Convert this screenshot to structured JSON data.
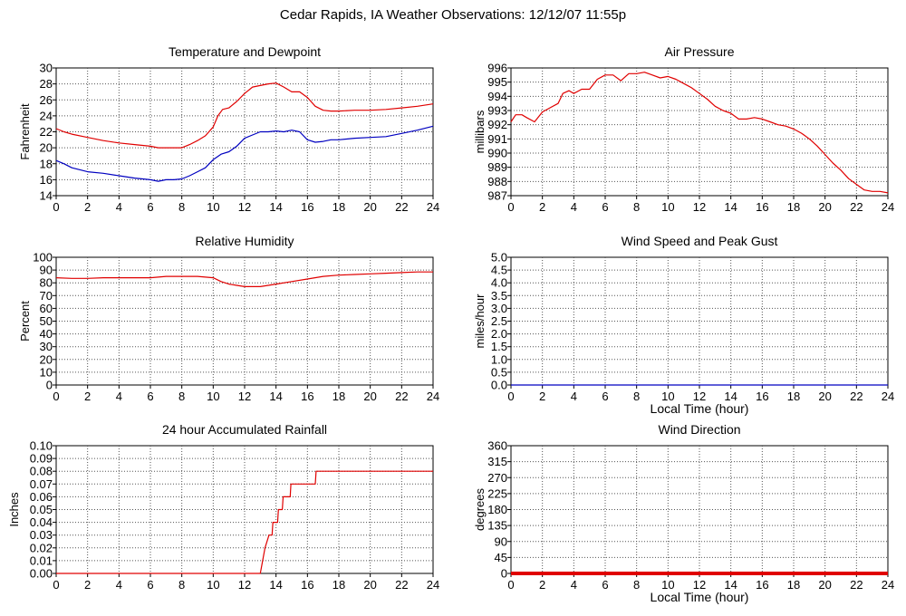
{
  "page_title": "Cedar Rapids, IA Weather Observations: 12/12/07 11:55p",
  "colors": {
    "red": "#e00000",
    "blue": "#0000c0",
    "grid": "#555555",
    "background": "#ffffff"
  },
  "chart_data": [
    {
      "type": "line",
      "title": "Temperature and Dewpoint",
      "xlabel": "",
      "ylabel": "Fahrenheit",
      "xlim": [
        0,
        24
      ],
      "ylim": [
        14,
        30
      ],
      "xticks": [
        0,
        2,
        4,
        6,
        8,
        10,
        12,
        14,
        16,
        18,
        20,
        22,
        24
      ],
      "yticks": [
        14,
        16,
        18,
        20,
        22,
        24,
        26,
        28,
        30
      ],
      "grid": true,
      "series": [
        {
          "color": "#e00000",
          "x": [
            0,
            0.5,
            1,
            2,
            3,
            4,
            5,
            6,
            6.5,
            7,
            7.5,
            8,
            8.5,
            9,
            9.5,
            10,
            10.3,
            10.6,
            11,
            11.5,
            12,
            12.5,
            13,
            13.5,
            14,
            14.5,
            15,
            15.5,
            16,
            16.5,
            17,
            17.5,
            18,
            19,
            20,
            21,
            22,
            23,
            24
          ],
          "y": [
            22.4,
            22.0,
            21.7,
            21.3,
            20.9,
            20.6,
            20.4,
            20.2,
            20.0,
            20.0,
            20.0,
            20.0,
            20.4,
            20.9,
            21.5,
            22.6,
            24.0,
            24.8,
            25.0,
            25.8,
            26.8,
            27.6,
            27.8,
            28.0,
            28.1,
            27.6,
            27.0,
            27.0,
            26.3,
            25.2,
            24.7,
            24.6,
            24.6,
            24.7,
            24.7,
            24.8,
            25.0,
            25.2,
            25.5
          ]
        },
        {
          "color": "#0000c0",
          "x": [
            0,
            0.5,
            1,
            2,
            3,
            4,
            5,
            6,
            6.5,
            7,
            7.5,
            8,
            8.5,
            9,
            9.5,
            10,
            10.5,
            11,
            11.5,
            12,
            12.5,
            13,
            13.5,
            14,
            14.5,
            15,
            15.5,
            16,
            16.5,
            17,
            17.5,
            18,
            19,
            20,
            21,
            22,
            23,
            24
          ],
          "y": [
            18.4,
            18.0,
            17.5,
            17.0,
            16.8,
            16.5,
            16.2,
            16.0,
            15.8,
            16.0,
            16.0,
            16.1,
            16.5,
            17.0,
            17.5,
            18.5,
            19.2,
            19.5,
            20.2,
            21.2,
            21.6,
            22.0,
            22.0,
            22.1,
            22.0,
            22.2,
            22.0,
            21.0,
            20.7,
            20.8,
            21.0,
            21.0,
            21.2,
            21.3,
            21.4,
            21.8,
            22.2,
            22.7
          ]
        }
      ]
    },
    {
      "type": "line",
      "title": "Air Pressure",
      "xlabel": "",
      "ylabel": "millibars",
      "xlim": [
        0,
        24
      ],
      "ylim": [
        987,
        996
      ],
      "xticks": [
        0,
        2,
        4,
        6,
        8,
        10,
        12,
        14,
        16,
        18,
        20,
        22,
        24
      ],
      "yticks": [
        987,
        988,
        989,
        990,
        991,
        992,
        993,
        994,
        995,
        996
      ],
      "grid": true,
      "series": [
        {
          "color": "#e00000",
          "x": [
            0,
            0.3,
            0.7,
            1,
            1.5,
            2,
            2.5,
            3,
            3.3,
            3.7,
            4,
            4.5,
            5,
            5.5,
            6,
            6.5,
            7,
            7.5,
            8,
            8.5,
            9,
            9.5,
            10,
            10.5,
            11,
            11.5,
            12,
            12.5,
            13,
            13.5,
            14,
            14.5,
            15,
            15.5,
            16,
            16.5,
            17,
            17.5,
            18,
            18.5,
            19,
            19.5,
            20,
            20.5,
            21,
            21.5,
            22,
            22.5,
            23,
            23.5,
            24
          ],
          "y": [
            992.2,
            992.7,
            992.7,
            992.5,
            992.2,
            992.9,
            993.2,
            993.5,
            994.2,
            994.4,
            994.2,
            994.5,
            994.5,
            995.2,
            995.5,
            995.5,
            995.1,
            995.6,
            995.6,
            995.7,
            995.5,
            995.3,
            995.4,
            995.2,
            994.9,
            994.6,
            994.2,
            993.8,
            993.3,
            993.0,
            992.8,
            992.4,
            992.4,
            992.5,
            992.4,
            992.2,
            992.0,
            991.9,
            991.7,
            991.4,
            991.0,
            990.5,
            989.9,
            989.3,
            988.8,
            988.2,
            987.8,
            987.4,
            987.3,
            987.3,
            987.2
          ]
        }
      ]
    },
    {
      "type": "line",
      "title": "Relative Humidity",
      "xlabel": "",
      "ylabel": "Percent",
      "xlim": [
        0,
        24
      ],
      "ylim": [
        0,
        100
      ],
      "xticks": [
        0,
        2,
        4,
        6,
        8,
        10,
        12,
        14,
        16,
        18,
        20,
        22,
        24
      ],
      "yticks": [
        0,
        10,
        20,
        30,
        40,
        50,
        60,
        70,
        80,
        90,
        100
      ],
      "grid": true,
      "series": [
        {
          "color": "#e00000",
          "x": [
            0,
            1,
            2,
            3,
            4,
            5,
            6,
            7,
            8,
            9,
            10,
            10.5,
            11,
            11.5,
            12,
            12.5,
            13,
            13.5,
            14,
            15,
            16,
            17,
            18,
            19,
            20,
            21,
            22,
            23,
            24
          ],
          "y": [
            84,
            83.5,
            83.5,
            84,
            84,
            84,
            84,
            85,
            85,
            85,
            84,
            81,
            79,
            78,
            77,
            77,
            77,
            78,
            79,
            81,
            83,
            85,
            86,
            86.5,
            87,
            87.5,
            88,
            88.5,
            88.5
          ]
        }
      ]
    },
    {
      "type": "line",
      "title": "Wind Speed and Peak Gust",
      "xlabel": "Local Time (hour)",
      "ylabel": "miles/hour",
      "xlim": [
        0,
        24
      ],
      "ylim": [
        0,
        5
      ],
      "xticks": [
        0,
        2,
        4,
        6,
        8,
        10,
        12,
        14,
        16,
        18,
        20,
        22,
        24
      ],
      "yticks": [
        0.0,
        0.5,
        1.0,
        1.5,
        2.0,
        2.5,
        3.0,
        3.5,
        4.0,
        4.5,
        5.0
      ],
      "grid": true,
      "series": [
        {
          "color": "#0000c0",
          "x": [
            0,
            24
          ],
          "y": [
            0,
            0
          ]
        }
      ]
    },
    {
      "type": "line",
      "title": "24 hour Accumulated Rainfall",
      "xlabel": "",
      "ylabel": "Inches",
      "xlim": [
        0,
        24
      ],
      "ylim": [
        0,
        0.1
      ],
      "xticks": [
        0,
        2,
        4,
        6,
        8,
        10,
        12,
        14,
        16,
        18,
        20,
        22,
        24
      ],
      "yticks": [
        0.0,
        0.01,
        0.02,
        0.03,
        0.04,
        0.05,
        0.06,
        0.07,
        0.08,
        0.09,
        0.1
      ],
      "grid": true,
      "series": [
        {
          "color": "#e00000",
          "x": [
            0,
            13.0,
            13.15,
            13.3,
            13.55,
            13.75,
            13.8,
            14.1,
            14.15,
            14.4,
            14.45,
            14.9,
            14.95,
            15.3,
            15.35,
            16.5,
            16.55,
            24
          ],
          "y": [
            0,
            0,
            0.01,
            0.02,
            0.03,
            0.03,
            0.04,
            0.04,
            0.05,
            0.05,
            0.06,
            0.06,
            0.07,
            0.07,
            0.07,
            0.07,
            0.08,
            0.08
          ]
        }
      ]
    },
    {
      "type": "line",
      "title": "Wind Direction",
      "xlabel": "Local Time (hour)",
      "ylabel": "degrees",
      "xlim": [
        0,
        24
      ],
      "ylim": [
        0,
        360
      ],
      "xticks": [
        0,
        2,
        4,
        6,
        8,
        10,
        12,
        14,
        16,
        18,
        20,
        22,
        24
      ],
      "yticks": [
        0,
        45,
        90,
        135,
        180,
        225,
        270,
        315,
        360
      ],
      "grid": true,
      "series": [
        {
          "color": "#e00000",
          "x": [
            0,
            24
          ],
          "y": [
            0,
            0
          ],
          "thick": true
        }
      ]
    }
  ]
}
